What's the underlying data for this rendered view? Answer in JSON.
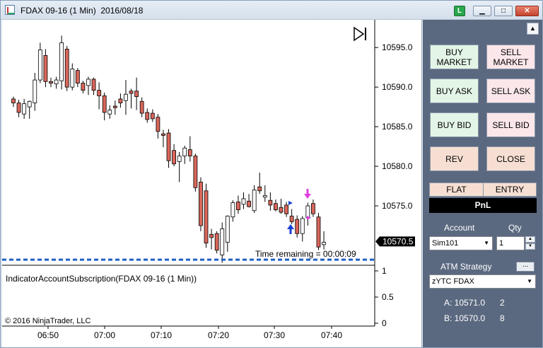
{
  "window": {
    "title": "FDAX 09-16 (1 Min)  2016/08/18",
    "link_label": "L",
    "min_glyph": "▁",
    "max_glyph": "□",
    "close_glyph": "✕"
  },
  "chart": {
    "indicator_label": "IndicatorAccountSubscription(FDAX 09-16 (1 Min))",
    "copyright": "© 2016 NinjaTrader, LLC",
    "time_remaining": "Time remaining = 00:00:09",
    "last_price_label": "10570.5",
    "price_ticks": [
      "10595.0",
      "10590.0",
      "10585.0",
      "10580.0",
      "10575.0"
    ],
    "indicator_ticks": [
      "1",
      "0.5",
      "0"
    ],
    "time_ticks": [
      "06:50",
      "07:00",
      "07:10",
      "07:20",
      "07:30",
      "07:40"
    ]
  },
  "chart_data": {
    "type": "candlestick",
    "y_range": [
      10567.5,
      10598.5
    ],
    "last_price": 10570.5,
    "dashed_level": 10568.2,
    "up_color": "#ffffff",
    "down_color": "#d9665a",
    "candles": [
      [
        10588.5,
        10588.8,
        10587.5,
        10588.0
      ],
      [
        10588.0,
        10588.4,
        10586.2,
        10586.8
      ],
      [
        10586.6,
        10588.5,
        10586.0,
        10587.9
      ],
      [
        10587.5,
        10588.3,
        10586.0,
        10588.2
      ],
      [
        10588.0,
        10591.8,
        10587.0,
        10590.9
      ],
      [
        10590.9,
        10595.6,
        10590.5,
        10594.7
      ],
      [
        10594.0,
        10594.8,
        10590.0,
        10590.7
      ],
      [
        10590.7,
        10591.2,
        10590.0,
        10590.5
      ],
      [
        10590.4,
        10591.3,
        10589.8,
        10590.9
      ],
      [
        10590.8,
        10596.5,
        10589.7,
        10595.6
      ],
      [
        10594.8,
        10595.2,
        10589.5,
        10590.0
      ],
      [
        10590.0,
        10593.0,
        10589.6,
        10592.3
      ],
      [
        10592.1,
        10592.4,
        10590.0,
        10590.5
      ],
      [
        10590.5,
        10590.8,
        10589.2,
        10589.6
      ],
      [
        10590.2,
        10591.3,
        10589.0,
        10591.0
      ],
      [
        10591.0,
        10591.2,
        10589.0,
        10589.6
      ],
      [
        10589.6,
        10590.6,
        10587.2,
        10588.9
      ],
      [
        10588.9,
        10589.3,
        10585.8,
        10586.8
      ],
      [
        10586.6,
        10587.7,
        10586.0,
        10587.1
      ],
      [
        10587.6,
        10588.3,
        10586.5,
        10587.4
      ],
      [
        10588.5,
        10589.2,
        10587.4,
        10588.0
      ],
      [
        10588.3,
        10590.9,
        10586.5,
        10589.1
      ],
      [
        10589.5,
        10589.8,
        10587.3,
        10589.2
      ],
      [
        10589.5,
        10591.2,
        10587.1,
        10588.8
      ],
      [
        10588.2,
        10588.7,
        10586.2,
        10586.7
      ],
      [
        10586.8,
        10587.3,
        10585.5,
        10585.9
      ],
      [
        10586.7,
        10587.2,
        10585.6,
        10586.0
      ],
      [
        10586.2,
        10586.6,
        10583.5,
        10584.4
      ],
      [
        10584.1,
        10584.6,
        10582.4,
        10583.9
      ],
      [
        10584.2,
        10584.7,
        10579.8,
        10580.7
      ],
      [
        10582.0,
        10582.8,
        10580.0,
        10580.3
      ],
      [
        10580.6,
        10581.8,
        10578.0,
        10581.3
      ],
      [
        10581.3,
        10582.6,
        10580.3,
        10582.3
      ],
      [
        10582.1,
        10583.8,
        10580.6,
        10581.3
      ],
      [
        10581.3,
        10581.6,
        10576.8,
        10577.3
      ],
      [
        10578.0,
        10578.6,
        10571.8,
        10572.5
      ],
      [
        10576.9,
        10577.8,
        10569.7,
        10570.3
      ],
      [
        10571.4,
        10572.1,
        10569.5,
        10571.0
      ],
      [
        10571.5,
        10571.8,
        10569.0,
        10569.4
      ],
      [
        10568.8,
        10572.9,
        10567.8,
        10572.1
      ],
      [
        10570.4,
        10573.8,
        10569.2,
        10573.7
      ],
      [
        10573.6,
        10575.7,
        10573.0,
        10575.4
      ],
      [
        10575.5,
        10576.3,
        10574.0,
        10574.5
      ],
      [
        10575.2,
        10576.7,
        10574.6,
        10575.9
      ],
      [
        10575.6,
        10576.5,
        10574.8,
        10574.9
      ],
      [
        10574.4,
        10577.6,
        10574.1,
        10577.0
      ],
      [
        10577.4,
        10579.2,
        10576.5,
        10576.9
      ],
      [
        10576.1,
        10577.6,
        10575.5,
        10576.3
      ],
      [
        10575.7,
        10576.7,
        10574.4,
        10575.1
      ],
      [
        10575.3,
        10575.8,
        10574.3,
        10574.5
      ],
      [
        10574.8,
        10575.9,
        10574.0,
        10574.2
      ],
      [
        10575.1,
        10575.5,
        10573.6,
        10574.0
      ],
      [
        10573.7,
        10574.6,
        10572.7,
        10573.0
      ],
      [
        10573.3,
        10573.8,
        10571.0,
        10571.5
      ],
      [
        10571.5,
        10573.7,
        10570.5,
        10573.4
      ],
      [
        10573.5,
        10575.4,
        10572.5,
        10575.0
      ],
      [
        10575.3,
        10575.8,
        10573.6,
        10574.0
      ],
      [
        10573.6,
        10574.1,
        10569.4,
        10569.8
      ],
      [
        10570.1,
        10571.8,
        10569.5,
        10570.4
      ]
    ]
  },
  "panel": {
    "buy_market": "BUY MARKET",
    "sell_market": "SELL MARKET",
    "buy_ask": "BUY ASK",
    "sell_ask": "SELL ASK",
    "buy_bid": "BUY BID",
    "sell_bid": "SELL BID",
    "rev": "REV",
    "close": "CLOSE",
    "flat": "FLAT",
    "entry": "ENTRY",
    "pnl": "PnL",
    "account_label": "Account",
    "qty_label": "Qty",
    "account_value": "Sim101",
    "qty_value": "1",
    "atm_label": "ATM Strategy",
    "atm_button": "...",
    "atm_value": "zYTC FDAX",
    "ask_label": "A: 10571.0",
    "ask_size": "2",
    "bid_label": "B: 10570.0",
    "bid_size": "8"
  }
}
